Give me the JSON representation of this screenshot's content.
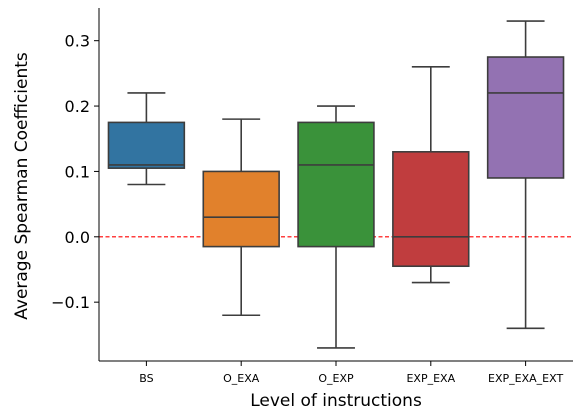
{
  "chart_data": {
    "type": "box",
    "xlabel": "Level of instructions",
    "ylabel": "Average Spearman Coefficients",
    "ylim": [
      -0.19,
      0.35
    ],
    "yticks": [
      {
        "value": 0.3,
        "label": "0.3"
      },
      {
        "value": 0.2,
        "label": "0.2"
      },
      {
        "value": 0.1,
        "label": "0.1"
      },
      {
        "value": 0.0,
        "label": "0.0"
      },
      {
        "value": -0.1,
        "label": "−0.1"
      }
    ],
    "reference_line": {
      "value": 0.0,
      "style": "dashed",
      "color": "#ff0000"
    },
    "grid": false,
    "categories": [
      "BS",
      "O_EXA",
      "O_EXP",
      "EXP_EXA",
      "EXP_EXA_EXT"
    ],
    "boxes": [
      {
        "category": "BS",
        "whisker_low": 0.08,
        "q1": 0.105,
        "median": 0.11,
        "q3": 0.175,
        "whisker_high": 0.22,
        "color": "#3274a1"
      },
      {
        "category": "O_EXA",
        "whisker_low": -0.12,
        "q1": -0.015,
        "median": 0.03,
        "q3": 0.1,
        "whisker_high": 0.18,
        "color": "#e1812c"
      },
      {
        "category": "O_EXP",
        "whisker_low": -0.17,
        "q1": -0.015,
        "median": 0.11,
        "q3": 0.175,
        "whisker_high": 0.2,
        "color": "#3a923a"
      },
      {
        "category": "EXP_EXA",
        "whisker_low": -0.07,
        "q1": -0.045,
        "median": 0.0,
        "q3": 0.13,
        "whisker_high": 0.26,
        "color": "#c03d3e"
      },
      {
        "category": "EXP_EXA_EXT",
        "whisker_low": -0.14,
        "q1": 0.09,
        "median": 0.22,
        "q3": 0.275,
        "whisker_high": 0.33,
        "color": "#9372b2"
      }
    ]
  }
}
